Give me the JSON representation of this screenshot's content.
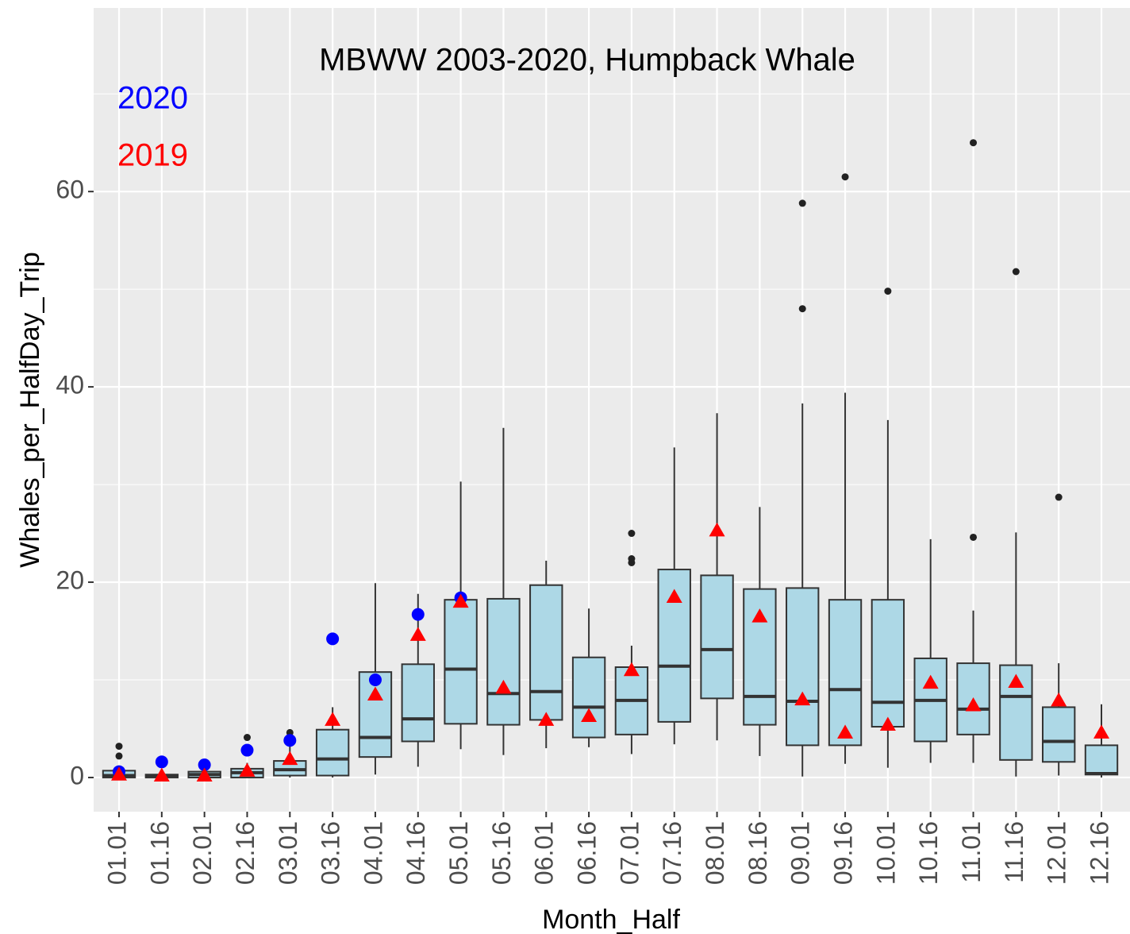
{
  "chart_data": {
    "type": "boxplot",
    "title": "MBWW 2003-2020, Humpback Whale",
    "x_label": "Month_Half",
    "y_label": "Whales_per_HalfDay_Trip",
    "categories": [
      "01.01",
      "01.16",
      "02.01",
      "02.16",
      "03.01",
      "03.16",
      "04.01",
      "04.16",
      "05.01",
      "05.16",
      "06.01",
      "06.16",
      "07.01",
      "07.16",
      "08.01",
      "08.16",
      "09.01",
      "09.16",
      "10.01",
      "10.16",
      "11.01",
      "11.16",
      "12.01",
      "12.16"
    ],
    "box_color": "#add8e6",
    "boxes": {
      "whisker_low": [
        0,
        0,
        0,
        0,
        0,
        0,
        0.3,
        1.1,
        2.9,
        2.3,
        3.0,
        3.1,
        2.4,
        3.4,
        3.8,
        2.2,
        0.1,
        1.4,
        1.0,
        1.5,
        1.5,
        0.1,
        0.2,
        0
      ],
      "q1": [
        0,
        0,
        0,
        0,
        0.2,
        0.2,
        2.1,
        3.7,
        5.5,
        5.4,
        5.9,
        4.1,
        4.4,
        5.7,
        8.1,
        5.4,
        3.3,
        3.3,
        5.2,
        3.7,
        4.4,
        1.8,
        1.6,
        0.3
      ],
      "median": [
        0.2,
        0.2,
        0.3,
        0.5,
        0.8,
        1.9,
        4.1,
        6.0,
        11.1,
        8.6,
        8.8,
        7.2,
        7.9,
        11.4,
        13.1,
        8.3,
        7.8,
        9.0,
        7.7,
        7.9,
        7.0,
        8.3,
        3.7,
        0.4
      ],
      "q3": [
        0.7,
        0.3,
        0.6,
        0.9,
        1.7,
        4.9,
        10.8,
        11.6,
        18.2,
        18.3,
        19.7,
        12.3,
        11.3,
        21.3,
        20.7,
        19.3,
        19.4,
        18.2,
        18.2,
        12.2,
        11.7,
        11.5,
        7.2,
        3.3
      ],
      "whisker_high": [
        0.8,
        0.5,
        0.8,
        1.5,
        3.7,
        7.2,
        19.9,
        18.8,
        30.3,
        35.8,
        22.2,
        17.3,
        13.5,
        33.8,
        37.3,
        27.7,
        38.3,
        39.4,
        36.6,
        24.4,
        17.1,
        25.1,
        11.7,
        7.5
      ],
      "outliers": [
        [
          3.2,
          2.2
        ],
        [],
        [],
        [
          4.1
        ],
        [
          4.6,
          4.2
        ],
        [],
        [],
        [],
        [],
        [],
        [],
        [],
        [
          25.0,
          22.4,
          22.0
        ],
        [],
        [],
        [],
        [
          48.0,
          58.8
        ],
        [
          61.5
        ],
        [
          49.8
        ],
        [],
        [
          24.6,
          65.0
        ],
        [
          51.8
        ],
        [
          28.7
        ],
        []
      ]
    },
    "series": [
      {
        "name": "2020",
        "color": "#0000ff",
        "marker": "circle",
        "values": [
          0.6,
          1.6,
          1.3,
          2.8,
          3.8,
          14.2,
          10.0,
          16.7,
          18.4,
          null,
          null,
          null,
          null,
          null,
          null,
          null,
          null,
          null,
          null,
          null,
          null,
          null,
          null,
          null
        ]
      },
      {
        "name": "2019",
        "color": "#ff0000",
        "marker": "triangle",
        "values": [
          0.3,
          0.2,
          0.2,
          0.7,
          1.9,
          5.9,
          8.5,
          14.6,
          18.0,
          9.2,
          5.9,
          6.3,
          11.0,
          18.5,
          25.3,
          16.5,
          8.0,
          4.6,
          5.4,
          9.7,
          7.4,
          9.8,
          7.9,
          4.6
        ]
      }
    ],
    "ylim": [
      -3.5,
      78.8
    ],
    "yticks": [
      0,
      20,
      40,
      60
    ],
    "minor_yticks": [
      10,
      30,
      50,
      70
    ],
    "grid": true
  }
}
